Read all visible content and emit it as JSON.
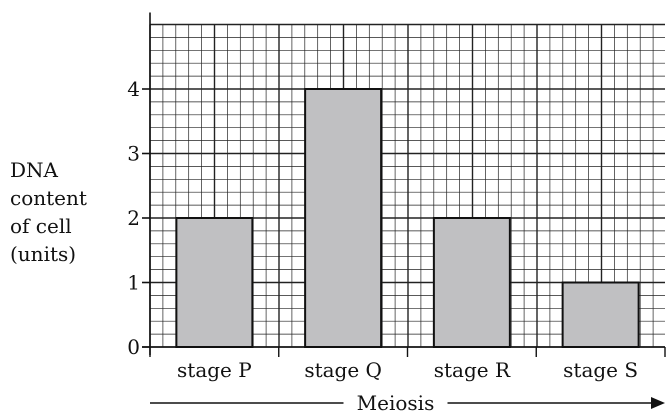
{
  "chart_data": {
    "type": "bar",
    "categories": [
      "stage P",
      "stage Q",
      "stage R",
      "stage S"
    ],
    "values": [
      2,
      4,
      2,
      1
    ],
    "title": "",
    "xlabel": "Meiosis",
    "ylabel_lines": [
      "DNA",
      "content",
      "of cell",
      "(units)"
    ],
    "yticks": [
      "0",
      "1",
      "2",
      "3",
      "4"
    ],
    "ylim": [
      0,
      5
    ],
    "grid": true,
    "bar_color": "#c0c0c2",
    "grid_color": "#222222"
  }
}
